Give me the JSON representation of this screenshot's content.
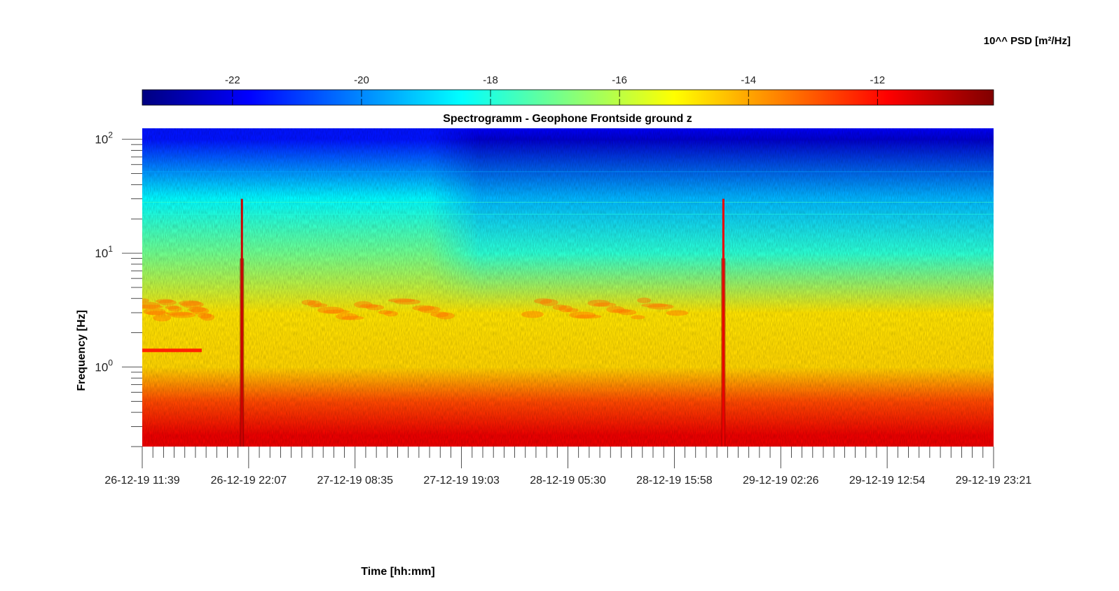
{
  "chart_data": {
    "type": "heatmap",
    "title": "Spectrogramm - Geophone Frontside ground z",
    "xlabel": "Time [hh:mm]",
    "ylabel": "Frequency [Hz]",
    "colorbar": {
      "label": "10^^ PSD [m²/Hz]",
      "ticks": [
        -22,
        -20,
        -18,
        -16,
        -14,
        -12
      ],
      "range": [
        -23.4,
        -10.2
      ],
      "colormap": "jet",
      "placement": "top"
    },
    "y_scale": "log",
    "y_range_hz": [
      0.2,
      125
    ],
    "y_ticks": [
      {
        "value": 1,
        "base": "10",
        "exp": "0"
      },
      {
        "value": 10,
        "base": "10",
        "exp": "1"
      },
      {
        "value": 100,
        "base": "10",
        "exp": "2"
      }
    ],
    "x_range": [
      "26-12-19 11:39",
      "29-12-19 23:21"
    ],
    "x_tick_labels": [
      "26-12-19 11:39",
      "26-12-19 22:07",
      "27-12-19 08:35",
      "27-12-19 19:03",
      "28-12-19 05:30",
      "28-12-19 15:58",
      "29-12-19 02:26",
      "29-12-19 12:54",
      "29-12-19 23:21"
    ],
    "psd_profile_log10": [
      {
        "freq_hz": 0.25,
        "psd": -11.6
      },
      {
        "freq_hz": 0.5,
        "psd": -12.8
      },
      {
        "freq_hz": 1.0,
        "psd": -14.6
      },
      {
        "freq_hz": 3.0,
        "psd": -14.8
      },
      {
        "freq_hz": 10,
        "psd": -17.0
      },
      {
        "freq_hz": 30,
        "psd": -18.5
      },
      {
        "freq_hz": 100,
        "psd": -21.5
      }
    ],
    "events": [
      {
        "time": "26-12-19 21:27",
        "psd": -11.2
      },
      {
        "time": "28-12-19 20:47",
        "psd": -11.6
      }
    ],
    "band_features": [
      {
        "time_start": "26-12-19 11:39",
        "time_end": "26-12-19 17:30",
        "freq_hz": 1.4,
        "psd": -12.3
      }
    ]
  }
}
